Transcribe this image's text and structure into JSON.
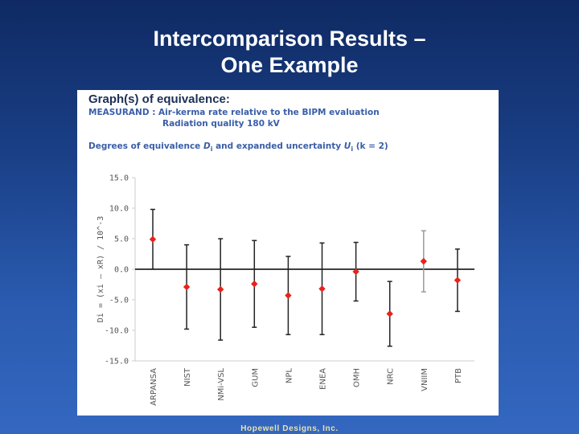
{
  "slide": {
    "title_line1": "Intercomparison Results –",
    "title_line2": "One Example",
    "footer": "Hopewell Designs, Inc."
  },
  "panel": {
    "heading": "Graph(s) of equivalence:",
    "measurand": "MEASURAND : Air-kerma rate relative to the BIPM evaluation",
    "radiation_quality": "Radiation quality 180 kV",
    "degrees_prefix": "Degrees of equivalence ",
    "degrees_D": "D",
    "degrees_sub_i": "i",
    "degrees_middle": " and expanded uncertainty ",
    "degrees_U": "U",
    "degrees_suffix": " (k = 2)"
  },
  "colors": {
    "marker": "#e8221c",
    "error_bar_dark": "#222222",
    "error_bar_light": "#9a9a9a",
    "axis": "#000000",
    "gridline": "#cccccc"
  },
  "chart_data": {
    "type": "scatter",
    "title": "Graph(s) of equivalence:",
    "ylabel": "Di = (xi – xR) / 10^-3",
    "xlabel": "",
    "ylim": [
      -15,
      15
    ],
    "yticks": [
      15.0,
      10.0,
      5.0,
      0.0,
      -5.0,
      -10.0,
      -15.0
    ],
    "ytick_labels": [
      "15.0",
      "10.0",
      "5.0",
      "0.0",
      "-5.0",
      "-10.0",
      "-15.0"
    ],
    "grid": false,
    "categories": [
      "ARPANSA",
      "NIST",
      "NMi-VSL",
      "GUM",
      "NPL",
      "ENEA",
      "OMH",
      "NRC",
      "VNIIM",
      "PTB"
    ],
    "values": [
      4.9,
      -2.9,
      -3.3,
      -2.4,
      -4.3,
      -3.2,
      -0.4,
      -7.3,
      1.3,
      -1.8
    ],
    "uncertainty": [
      4.9,
      6.9,
      8.3,
      7.1,
      6.4,
      7.5,
      4.8,
      5.3,
      5.0,
      5.1
    ],
    "light_bars": [
      false,
      false,
      false,
      false,
      false,
      false,
      false,
      false,
      true,
      false
    ]
  }
}
